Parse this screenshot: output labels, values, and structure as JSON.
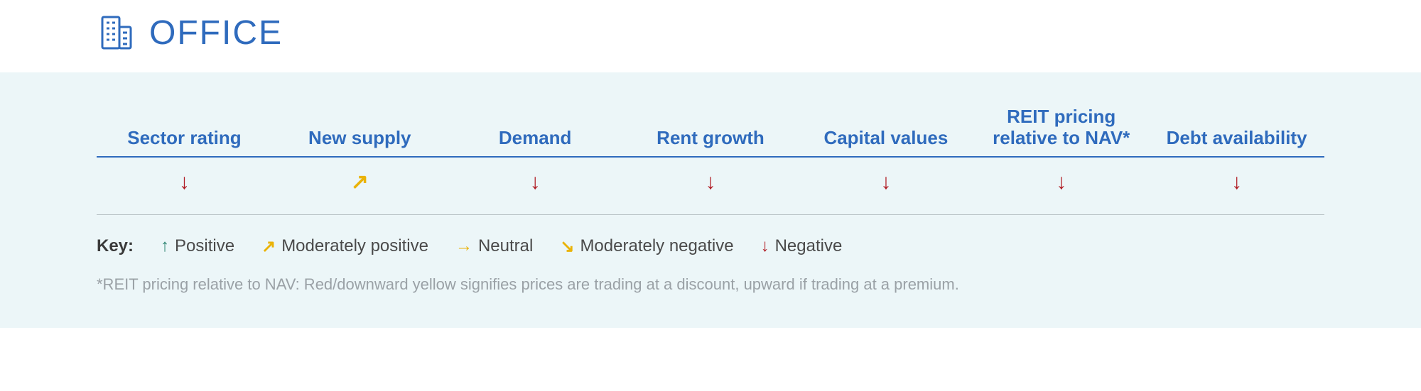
{
  "title": "OFFICE",
  "colors": {
    "brand_blue": "#2f6bbd",
    "panel_bg": "#ecf6f8",
    "divider": "#b8c2c6",
    "text_grey": "#4a4a4a",
    "footnote_grey": "#9aa1a6",
    "positive": "#2e8572",
    "mod_positive": "#eab308",
    "neutral": "#eab308",
    "mod_negative": "#eab308",
    "negative": "#b01c24"
  },
  "columns": [
    {
      "label": "Sector rating",
      "indicator": "negative"
    },
    {
      "label": "New supply",
      "indicator": "mod_positive"
    },
    {
      "label": "Demand",
      "indicator": "negative"
    },
    {
      "label": "Rent growth",
      "indicator": "negative"
    },
    {
      "label": "Capital values",
      "indicator": "negative"
    },
    {
      "label": "REIT pricing relative to NAV*",
      "indicator": "negative"
    },
    {
      "label": "Debt availability",
      "indicator": "negative"
    }
  ],
  "indicators": {
    "positive": {
      "glyph": "↑",
      "color": "#2e8572"
    },
    "mod_positive": {
      "glyph": "↗",
      "color": "#eab308"
    },
    "neutral": {
      "glyph": "→",
      "color": "#eab308"
    },
    "mod_negative": {
      "glyph": "↘",
      "color": "#eab308"
    },
    "negative": {
      "glyph": "↓",
      "color": "#b01c24"
    }
  },
  "key": {
    "label": "Key:",
    "items": [
      {
        "indicator": "positive",
        "text": "Positive"
      },
      {
        "indicator": "mod_positive",
        "text": "Moderately positive"
      },
      {
        "indicator": "neutral",
        "text": "Neutral"
      },
      {
        "indicator": "mod_negative",
        "text": "Moderately negative"
      },
      {
        "indicator": "negative",
        "text": "Negative"
      }
    ]
  },
  "footnote": "*REIT pricing relative to NAV: Red/downward yellow signifies prices are trading at a discount, upward if trading at a premium."
}
